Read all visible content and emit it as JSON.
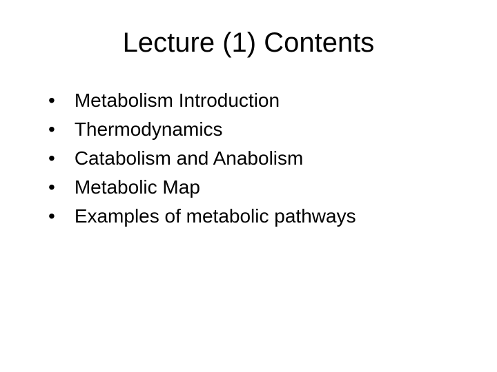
{
  "title": "Lecture (1) Contents",
  "items": [
    "Metabolism Introduction",
    "Thermodynamics",
    "Catabolism and Anabolism",
    "Metabolic Map",
    "Examples of metabolic pathways"
  ],
  "style": {
    "background_color": "#ffffff",
    "text_color": "#000000",
    "title_fontsize": 40,
    "item_fontsize": 28,
    "font_family": "Arial, Helvetica, sans-serif"
  }
}
